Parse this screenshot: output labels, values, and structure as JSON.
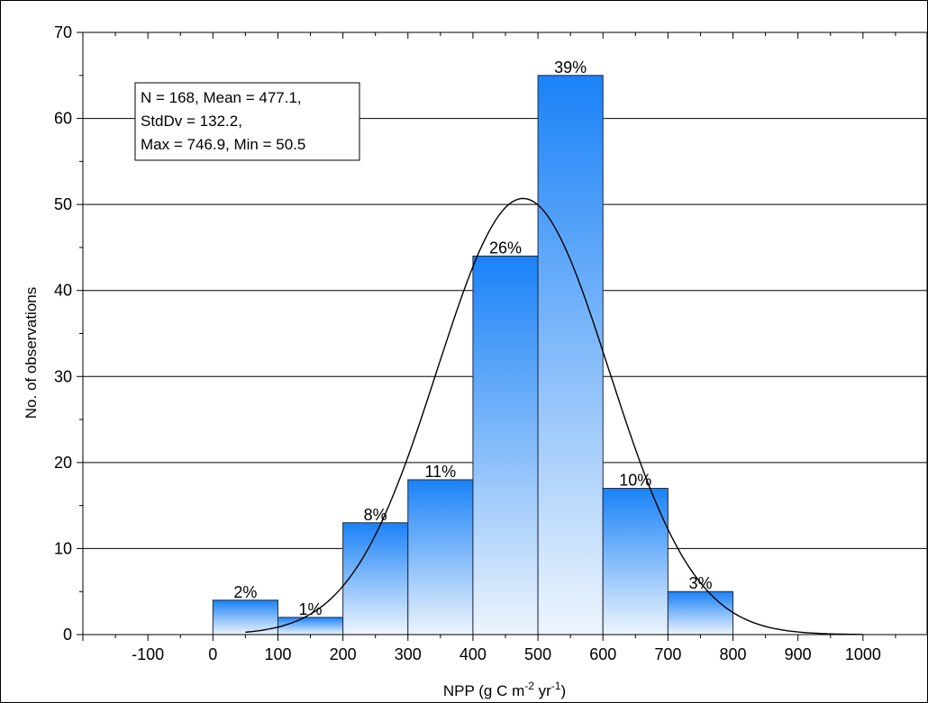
{
  "chart_data": {
    "type": "bar",
    "subtype": "histogram",
    "xlabel": "NPP (g C m",
    "xlabel_sup1": "-2",
    "xlabel_mid": " yr",
    "xlabel_sup2": "-1",
    "xlabel_end": ")",
    "ylabel": "No. of observations",
    "xlim": [
      -200,
      1100
    ],
    "ylim": [
      0,
      70
    ],
    "grid": "horizontal",
    "x_ticks": [
      -100,
      0,
      100,
      200,
      300,
      400,
      500,
      600,
      700,
      800,
      900,
      1000
    ],
    "y_ticks": [
      0,
      10,
      20,
      30,
      40,
      50,
      60,
      70
    ],
    "bins": [
      {
        "from": 0,
        "to": 100,
        "count": 4,
        "label": "2%"
      },
      {
        "from": 100,
        "to": 200,
        "count": 2,
        "label": "1%"
      },
      {
        "from": 200,
        "to": 300,
        "count": 13,
        "label": "8%"
      },
      {
        "from": 300,
        "to": 400,
        "count": 18,
        "label": "11%"
      },
      {
        "from": 400,
        "to": 500,
        "count": 44,
        "label": "26%"
      },
      {
        "from": 500,
        "to": 600,
        "count": 65,
        "label": "39%"
      },
      {
        "from": 600,
        "to": 700,
        "count": 17,
        "label": "10%"
      },
      {
        "from": 700,
        "to": 800,
        "count": 5,
        "label": "3%"
      }
    ],
    "fitted_curve": {
      "type": "normal",
      "mean": 477.1,
      "std": 132.2,
      "n": 168,
      "bin_width": 100
    },
    "colors": {
      "bar_top": "#1a82f7",
      "bar_bottom": "#eef5fd",
      "bar_stroke": "#1f2a44",
      "curve": "#000000",
      "grid": "#000000"
    },
    "stats_box": {
      "lines": [
        "N = 168, Mean = 477.1,",
        "StdDv = 132.2,",
        "Max = 746.9, Min = 50.5"
      ]
    }
  }
}
